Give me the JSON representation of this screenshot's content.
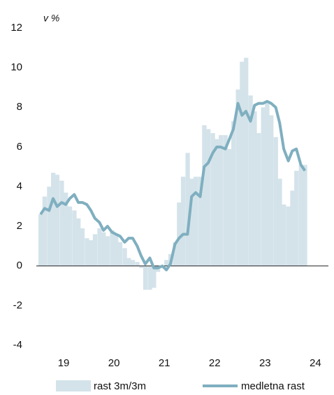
{
  "chart_data": {
    "type": "bar_line",
    "ylabel": "v %",
    "x": [
      2019.0,
      2019.08,
      2019.17,
      2019.25,
      2019.33,
      2019.42,
      2019.5,
      2019.58,
      2019.67,
      2019.75,
      2019.83,
      2019.92,
      2020.0,
      2020.08,
      2020.17,
      2020.25,
      2020.33,
      2020.42,
      2020.5,
      2020.58,
      2020.67,
      2020.75,
      2020.83,
      2020.92,
      2021.0,
      2021.08,
      2021.17,
      2021.25,
      2021.33,
      2021.42,
      2021.5,
      2021.58,
      2021.67,
      2021.75,
      2021.83,
      2021.92,
      2022.0,
      2022.08,
      2022.17,
      2022.25,
      2022.33,
      2022.42,
      2022.5,
      2022.58,
      2022.67,
      2022.75,
      2022.83,
      2022.92,
      2023.0,
      2023.08,
      2023.17,
      2023.25,
      2023.33,
      2023.42,
      2023.5,
      2023.58,
      2023.67,
      2023.75,
      2023.83,
      2023.92,
      2024.0,
      2024.08,
      2024.17,
      2024.25
    ],
    "series": [
      {
        "name": "rast 3m/3m",
        "type": "bar",
        "color": "#d4e3ea",
        "values": [
          2.6,
          3.5,
          4.0,
          4.7,
          4.6,
          4.3,
          3.7,
          3.0,
          2.8,
          2.4,
          1.9,
          1.4,
          1.3,
          1.6,
          1.9,
          1.7,
          1.5,
          1.8,
          1.6,
          1.2,
          0.9,
          0.4,
          0.3,
          0.2,
          -0.1,
          -1.2,
          -1.2,
          -1.1,
          -0.3,
          0.0,
          0.3,
          0.6,
          1.2,
          3.2,
          4.5,
          5.7,
          4.4,
          4.5,
          4.5,
          7.1,
          6.9,
          6.7,
          6.4,
          6.6,
          6.6,
          5.9,
          7.3,
          8.9,
          10.3,
          10.5,
          8.6,
          7.8,
          6.7,
          8.0,
          8.2,
          7.6,
          6.5,
          4.4,
          3.1,
          3.0,
          3.8,
          4.8,
          5.1,
          5.1
        ]
      },
      {
        "name": "medletna rast",
        "type": "line",
        "color": "#7fafc0",
        "values": [
          2.6,
          2.9,
          2.8,
          3.4,
          3.0,
          3.2,
          3.1,
          3.4,
          3.6,
          3.2,
          3.2,
          3.1,
          2.8,
          2.4,
          2.2,
          1.8,
          2.0,
          1.7,
          1.6,
          1.5,
          1.2,
          1.4,
          1.4,
          1.0,
          0.5,
          0.1,
          0.4,
          -0.1,
          -0.1,
          0.0,
          -0.2,
          0.1,
          1.1,
          1.4,
          1.6,
          1.6,
          3.5,
          3.7,
          3.5,
          5.0,
          5.2,
          5.7,
          6.0,
          6.0,
          5.9,
          6.4,
          6.9,
          8.2,
          7.6,
          7.8,
          7.3,
          8.1,
          8.2,
          8.2,
          8.3,
          8.2,
          8.0,
          7.2,
          5.9,
          5.3,
          5.8,
          5.9,
          5.1,
          4.8
        ]
      }
    ],
    "xlim": [
      2019,
      2024.8
    ],
    "xticks": [
      {
        "value": 2019.5,
        "label": "19"
      },
      {
        "value": 2020.5,
        "label": "20"
      },
      {
        "value": 2021.5,
        "label": "21"
      },
      {
        "value": 2022.5,
        "label": "22"
      },
      {
        "value": 2023.5,
        "label": "23"
      },
      {
        "value": 2024.5,
        "label": "24"
      }
    ],
    "ylim": [
      -4,
      12
    ],
    "yticks": [
      -4,
      -2,
      0,
      2,
      4,
      6,
      8,
      10,
      12
    ],
    "bar_width": 0.0833,
    "legend": "bottom"
  }
}
